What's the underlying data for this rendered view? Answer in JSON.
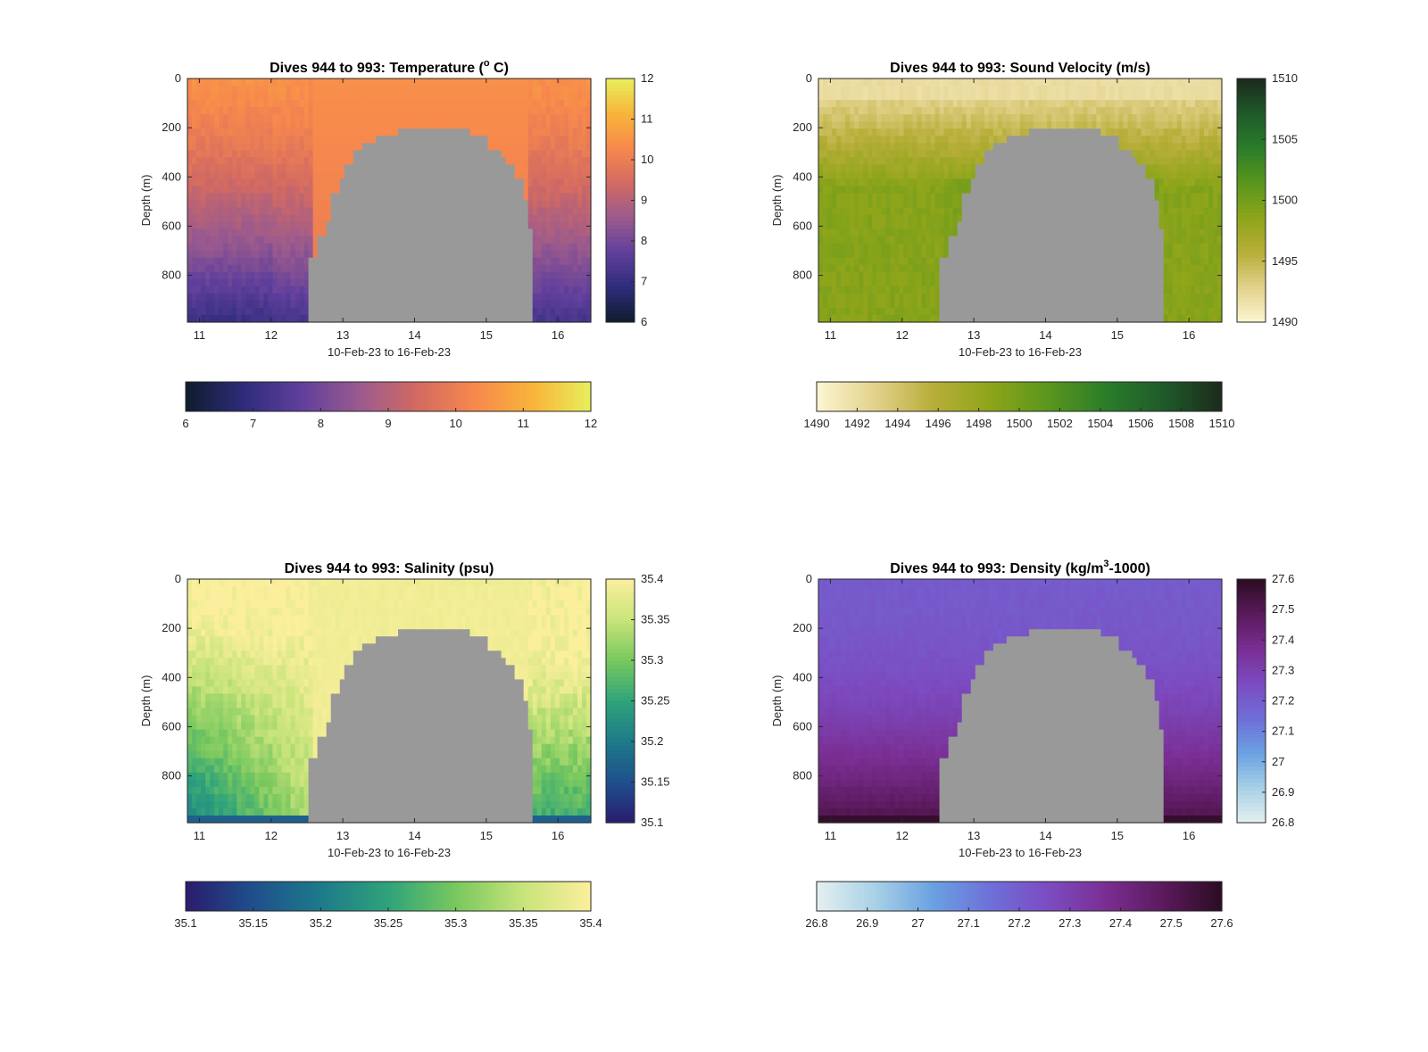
{
  "figure": {
    "chart_data": [
      {
        "type": "heatmap",
        "title": "Dives 944 to 993: Temperature (",
        "title_super": "o",
        "title_tail": " C)",
        "xlabel": "10-Feb-23 to 16-Feb-23",
        "ylabel": "Depth (m)",
        "x_ticks": [
          "11",
          "12",
          "13",
          "14",
          "15",
          "16"
        ],
        "y_ticks": [
          "0",
          "200",
          "400",
          "600",
          "800"
        ],
        "xlim": [
          "10-Feb-23 20:00",
          "16-Feb-23 11:00"
        ],
        "ylim": [
          0,
          990
        ],
        "y_reversed": true,
        "colorbar_range": [
          6,
          12
        ],
        "colorbar_right_ticks": [
          "6",
          "7",
          "8",
          "9",
          "10",
          "11",
          "12"
        ],
        "colorbar_bottom_ticks": [
          "6",
          "7",
          "8",
          "9",
          "10",
          "11",
          "12"
        ],
        "colormap": [
          "#0e1c2c",
          "#2e2c7a",
          "#603f9c",
          "#9a5a8e",
          "#d26a62",
          "#f7884d",
          "#f8b43a",
          "#e8ef5c"
        ],
        "near_surface_value": 10.4,
        "deep_value_edges": 7.4,
        "gap_color": "#999999"
      },
      {
        "type": "heatmap",
        "title": "Dives 944 to 993: Sound Velocity (m/s)",
        "title_super": "",
        "title_tail": "",
        "xlabel": "10-Feb-23 to 16-Feb-23",
        "ylabel": "Depth (m)",
        "x_ticks": [
          "11",
          "12",
          "13",
          "14",
          "15",
          "16"
        ],
        "y_ticks": [
          "0",
          "200",
          "400",
          "600",
          "800"
        ],
        "xlim": [
          "10-Feb-23 20:00",
          "16-Feb-23 11:00"
        ],
        "ylim": [
          0,
          990
        ],
        "y_reversed": true,
        "colorbar_range": [
          1490,
          1510
        ],
        "colorbar_right_ticks": [
          "1490",
          "1495",
          "1500",
          "1505",
          "1510"
        ],
        "colorbar_bottom_ticks": [
          "1490",
          "1492",
          "1494",
          "1496",
          "1498",
          "1500",
          "1502",
          "1504",
          "1506",
          "1508",
          "1510"
        ],
        "colormap": [
          "#fcf6d2",
          "#e3d28c",
          "#b8ae3a",
          "#8ea51a",
          "#5a961d",
          "#2b7d2a",
          "#1f5a2a",
          "#1c2a1c"
        ],
        "near_surface_value": 1492.5,
        "deep_value_edges": 1497.5,
        "gap_color": "#999999"
      },
      {
        "type": "heatmap",
        "title": "Dives 944 to 993: Salinity (psu)",
        "title_super": "",
        "title_tail": "",
        "xlabel": "10-Feb-23 to 16-Feb-23",
        "ylabel": "Depth (m)",
        "x_ticks": [
          "11",
          "12",
          "13",
          "14",
          "15",
          "16"
        ],
        "y_ticks": [
          "0",
          "200",
          "400",
          "600",
          "800"
        ],
        "xlim": [
          "10-Feb-23 20:00",
          "16-Feb-23 11:00"
        ],
        "ylim": [
          0,
          990
        ],
        "y_reversed": true,
        "colorbar_range": [
          35.1,
          35.4
        ],
        "colorbar_right_ticks": [
          "35.1",
          "35.15",
          "35.2",
          "35.25",
          "35.3",
          "35.35",
          "35.4"
        ],
        "colorbar_bottom_ticks": [
          "35.1",
          "35.15",
          "35.2",
          "35.25",
          "35.3",
          "35.35",
          "35.4"
        ],
        "colormap": [
          "#2a1c6e",
          "#1f4f8c",
          "#1d7a8a",
          "#2fa37a",
          "#78c85e",
          "#c8e47a",
          "#fbef9d"
        ],
        "near_surface_value": 35.4,
        "deep_value_edges": 35.27,
        "gap_color": "#999999"
      },
      {
        "type": "heatmap",
        "title": "Dives 944 to 993: Density (kg/m",
        "title_super": "3",
        "title_tail": "-1000)",
        "xlabel": "10-Feb-23 to 16-Feb-23",
        "ylabel": "Depth (m)",
        "x_ticks": [
          "11",
          "12",
          "13",
          "14",
          "15",
          "16"
        ],
        "y_ticks": [
          "0",
          "200",
          "400",
          "600",
          "800"
        ],
        "xlim": [
          "10-Feb-23 20:00",
          "16-Feb-23 11:00"
        ],
        "ylim": [
          0,
          990
        ],
        "y_reversed": true,
        "colorbar_range": [
          26.8,
          27.6
        ],
        "colorbar_right_ticks": [
          "26.8",
          "26.9",
          "27",
          "27.1",
          "27.2",
          "27.3",
          "27.4",
          "27.5",
          "27.6"
        ],
        "colorbar_bottom_ticks": [
          "26.8",
          "26.9",
          "27",
          "27.1",
          "27.2",
          "27.3",
          "27.4",
          "27.5",
          "27.6"
        ],
        "colormap": [
          "#e4f0f0",
          "#a9d1e6",
          "#6aa2e2",
          "#6e6fd8",
          "#7c4cc2",
          "#7a2e93",
          "#5a1a5c",
          "#2c0c22"
        ],
        "near_surface_value": 27.22,
        "deep_value_edges": 27.52,
        "gap_color": "#999999"
      }
    ]
  }
}
